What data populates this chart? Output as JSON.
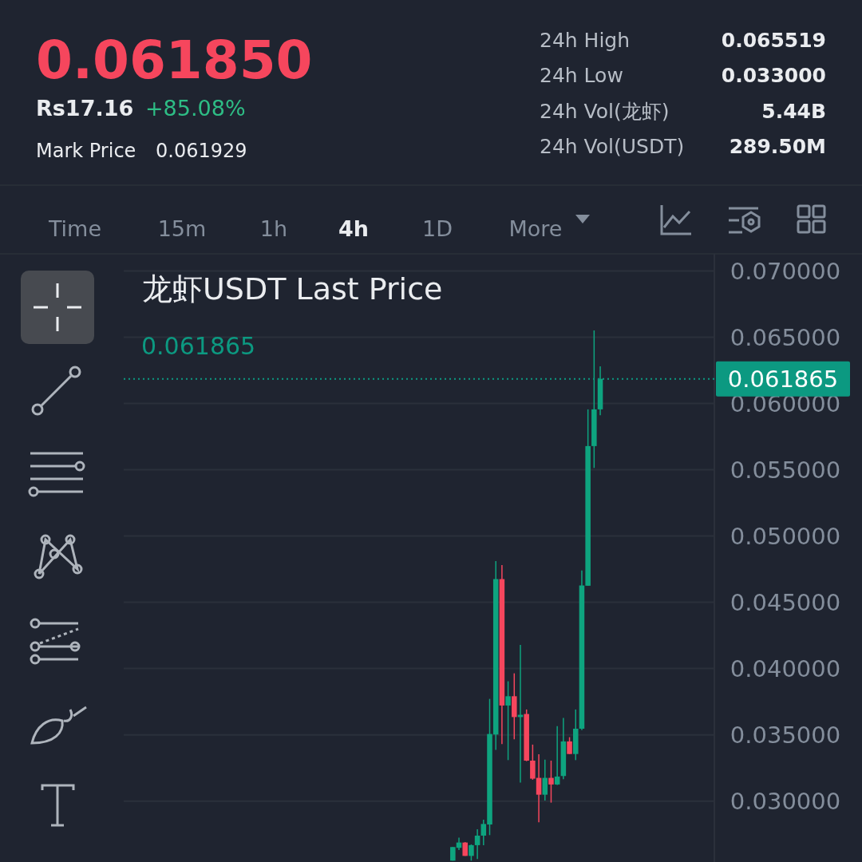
{
  "chart_data": {
    "type": "candlestick",
    "title": "龙虾USDT Last Price",
    "categories": [
      null,
      null,
      null,
      null,
      null,
      null,
      null,
      null,
      null,
      null,
      null,
      null,
      null,
      null,
      null,
      null,
      null,
      null,
      null,
      null,
      null,
      null,
      null,
      null,
      null,
      null,
      null,
      null,
      null,
      null,
      null,
      null,
      null,
      null,
      null,
      null,
      null,
      null,
      null,
      null,
      null,
      null,
      null,
      null,
      null,
      null,
      null,
      null,
      null,
      null,
      null,
      null,
      null,
      null,
      null,
      null,
      null,
      null,
      null,
      null,
      null,
      null,
      null,
      null,
      null,
      null,
      null,
      null,
      null,
      null,
      null,
      null,
      null,
      null,
      null,
      null,
      null,
      null,
      null,
      null,
      null,
      null,
      null,
      null,
      null,
      null,
      null,
      null,
      null,
      null,
      null,
      null,
      null,
      null,
      null,
      null
    ],
    "ohlc": [
      null,
      null,
      null,
      null,
      null,
      null,
      null,
      null,
      null,
      null,
      null,
      null,
      null,
      null,
      null,
      null,
      null,
      null,
      null,
      null,
      null,
      null,
      null,
      null,
      null,
      null,
      null,
      null,
      null,
      null,
      null,
      null,
      null,
      null,
      null,
      null,
      null,
      null,
      null,
      null,
      null,
      null,
      null,
      null,
      null,
      null,
      null,
      null,
      null,
      null,
      null,
      null,
      null,
      [
        0.0255,
        0.02653,
        0.0255,
        0.02653
      ],
      [
        0.02647,
        0.02723,
        0.0263,
        0.02687
      ],
      [
        0.02687,
        0.0269,
        0.02586,
        0.02586
      ],
      [
        0.02586,
        0.02673,
        0.0255,
        0.02667
      ],
      [
        0.02667,
        0.02787,
        0.02562,
        0.02739
      ],
      [
        0.02739,
        0.02859,
        0.02667,
        0.02827
      ],
      [
        0.02823,
        0.03771,
        0.02743,
        0.03506
      ],
      [
        0.03502,
        0.04811,
        0.03386,
        0.04675
      ],
      [
        0.04675,
        0.04781,
        0.0343,
        0.03721
      ],
      [
        0.03721,
        0.03904,
        0.03309,
        0.03791
      ],
      [
        0.03791,
        0.03964,
        0.03466,
        0.03634
      ],
      [
        0.03634,
        0.04179,
        0.0314,
        0.03651
      ],
      [
        0.03657,
        0.03691,
        0.03301,
        0.03305
      ],
      [
        0.03305,
        0.03426,
        0.03161,
        0.03169
      ],
      [
        0.03175,
        0.03353,
        0.02839,
        0.03048
      ],
      [
        0.03048,
        0.03313,
        0.03004,
        0.03175
      ],
      [
        0.03175,
        0.03305,
        0.02988,
        0.03125
      ],
      [
        0.03125,
        0.03566,
        0.03121,
        0.03185
      ],
      [
        0.03189,
        0.03627,
        0.03165,
        0.0345
      ],
      [
        0.0345,
        0.03482,
        0.03355,
        0.03355
      ],
      [
        0.03355,
        0.03691,
        0.03309,
        0.03546
      ],
      [
        0.03546,
        0.0474,
        0.03536,
        0.04627
      ],
      [
        0.04625,
        0.05956,
        0.04625,
        0.05679
      ],
      [
        0.05679,
        0.065519,
        0.05514,
        0.05956
      ],
      [
        0.05956,
        0.06281,
        0.05912,
        0.061865
      ],
      null,
      null,
      null,
      null,
      null,
      null,
      null,
      null,
      null,
      null,
      null,
      null,
      null,
      null,
      null,
      null,
      null,
      null
    ],
    "ylim": [
      0.0254,
      0.0713
    ],
    "yticks": [
      {
        "value": 0.03,
        "label": "0.030000"
      },
      {
        "value": 0.035,
        "label": "0.035000"
      },
      {
        "value": 0.04,
        "label": "0.040000"
      },
      {
        "value": 0.045,
        "label": "0.045000"
      },
      {
        "value": 0.05,
        "label": "0.050000"
      },
      {
        "value": 0.055,
        "label": "0.055000"
      },
      {
        "value": 0.06,
        "label": "0.060000"
      },
      {
        "value": 0.065,
        "label": "0.065000"
      },
      {
        "value": 0.07,
        "label": "0.070000"
      }
    ],
    "grid": "y",
    "ref_lines": [
      {
        "axis": "y",
        "value": 0.061865,
        "label": "0.061865",
        "color": "#0c9981",
        "line_style": "dotted"
      }
    ],
    "annotations": [
      "0.061850",
      "Rs17.16",
      "+85.08%",
      "Mark Price",
      "0.061929",
      "24h High",
      "0.065519",
      "24h Low",
      "0.033000",
      "24h Vol(龙虾)",
      "5.44B",
      "24h Vol(USDT)",
      "289.50M",
      "Time",
      "15m",
      "1h",
      "4h",
      "1D",
      "More",
      "0.061865"
    ]
  }
}
